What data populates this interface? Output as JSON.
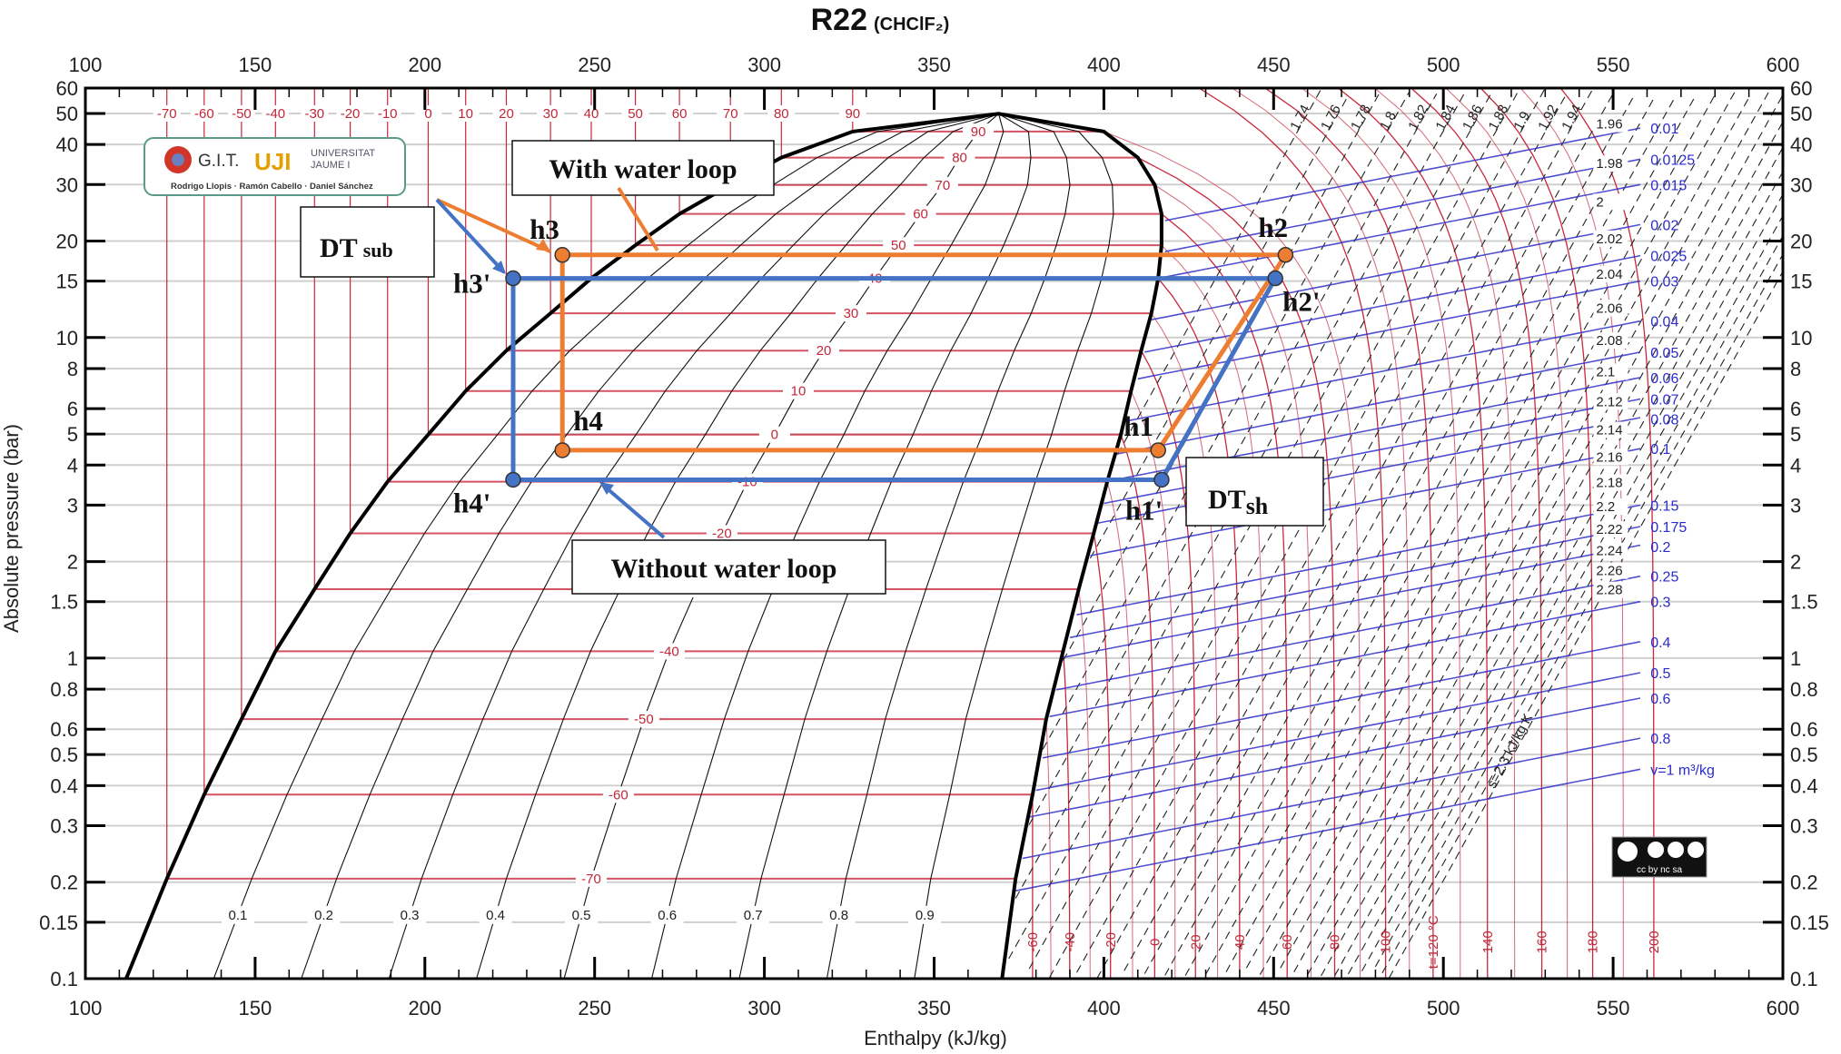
{
  "chart_data": {
    "type": "line",
    "title": "R22",
    "subtitle": "(CHClF₂)",
    "xlabel": "Enthalpy (kJ/kg)",
    "ylabel": "Absolute pressure (bar)",
    "xlim": [
      100,
      600
    ],
    "ylim": [
      0.1,
      60
    ],
    "yscale": "log",
    "grid": true,
    "xticks": [
      100,
      150,
      200,
      250,
      300,
      350,
      400,
      450,
      500,
      550,
      600
    ],
    "yticks": [
      0.1,
      0.15,
      0.2,
      0.3,
      0.4,
      0.5,
      0.6,
      0.8,
      1,
      1.5,
      2,
      3,
      4,
      5,
      6,
      8,
      10,
      15,
      20,
      30,
      40,
      50,
      60
    ],
    "ytick_labels": [
      "0.1",
      "0.15",
      "0.2",
      "0.3",
      "0.4",
      "0.5",
      "0.6",
      "0.8",
      "1",
      "1.5",
      "2",
      "3",
      "4",
      "5",
      "6",
      "8",
      "10",
      "15",
      "20",
      "30",
      "40",
      "50",
      "60"
    ],
    "saturation": {
      "low_end": {
        "p": 0.1,
        "h_liquid": 112,
        "h_vapor": 370
      },
      "critical": {
        "p": 49.9,
        "h": 369
      },
      "isotherms": [
        {
          "t": -70,
          "p": 0.205,
          "h_liquid": 124,
          "h_vapor": 374
        },
        {
          "t": -60,
          "p": 0.375,
          "h_liquid": 135,
          "h_vapor": 379
        },
        {
          "t": -50,
          "p": 0.645,
          "h_liquid": 146,
          "h_vapor": 383
        },
        {
          "t": -40,
          "p": 1.05,
          "h_liquid": 156,
          "h_vapor": 388
        },
        {
          "t": -30,
          "p": 1.64,
          "h_liquid": 167.5,
          "h_vapor": 392.6
        },
        {
          "t": -20,
          "p": 2.45,
          "h_liquid": 178,
          "h_vapor": 397
        },
        {
          "t": -10,
          "p": 3.55,
          "h_liquid": 189,
          "h_vapor": 401
        },
        {
          "t": 0,
          "p": 4.98,
          "h_liquid": 201,
          "h_vapor": 405
        },
        {
          "t": 10,
          "p": 6.81,
          "h_liquid": 212,
          "h_vapor": 408
        },
        {
          "t": 20,
          "p": 9.1,
          "h_liquid": 224,
          "h_vapor": 411
        },
        {
          "t": 30,
          "p": 11.9,
          "h_liquid": 237,
          "h_vapor": 414
        },
        {
          "t": 40,
          "p": 15.3,
          "h_liquid": 249,
          "h_vapor": 416
        },
        {
          "t": 50,
          "p": 19.4,
          "h_liquid": 262,
          "h_vapor": 417
        },
        {
          "t": 60,
          "p": 24.3,
          "h_liquid": 275,
          "h_vapor": 417
        },
        {
          "t": 70,
          "p": 29.9,
          "h_liquid": 290,
          "h_vapor": 415
        },
        {
          "t": 80,
          "p": 36.4,
          "h_liquid": 305,
          "h_vapor": 410
        },
        {
          "t": 90,
          "p": 43.9,
          "h_liquid": 326,
          "h_vapor": 400
        }
      ]
    },
    "superheated_isotherms": [
      {
        "t": -60,
        "label": "-60",
        "h_at_0_1_bar": 379
      },
      {
        "t": -40,
        "label": "-40",
        "h_at_0_1_bar": 390
      },
      {
        "t": -20,
        "label": "-20",
        "h_at_0_1_bar": 402
      },
      {
        "t": 0,
        "label": "0",
        "h_at_0_1_bar": 415
      },
      {
        "t": 20,
        "label": "20",
        "h_at_0_1_bar": 427
      },
      {
        "t": 40,
        "label": "40",
        "h_at_0_1_bar": 440
      },
      {
        "t": 60,
        "label": "60",
        "h_at_0_1_bar": 454
      },
      {
        "t": 80,
        "label": "80",
        "h_at_0_1_bar": 468
      },
      {
        "t": 100,
        "label": "100",
        "h_at_0_1_bar": 483
      },
      {
        "t": 120,
        "label": "t=120 °C",
        "h_at_0_1_bar": 497
      },
      {
        "t": 140,
        "label": "140",
        "h_at_0_1_bar": 513
      },
      {
        "t": 160,
        "label": "160",
        "h_at_0_1_bar": 529
      },
      {
        "t": 180,
        "label": "180",
        "h_at_0_1_bar": 544
      },
      {
        "t": 200,
        "label": "200",
        "h_at_0_1_bar": 562
      }
    ],
    "quality_lines": [
      0.1,
      0.2,
      0.3,
      0.4,
      0.5,
      0.6,
      0.7,
      0.8,
      0.9
    ],
    "entropy_lines": {
      "values": [
        1.74,
        1.76,
        1.78,
        1.8,
        1.82,
        1.84,
        1.86,
        1.88,
        1.9,
        1.92,
        1.94,
        1.96,
        1.98,
        2,
        2.02,
        2.04,
        2.06,
        2.08,
        2.1,
        2.12,
        2.14,
        2.16,
        2.18,
        2.2,
        2.22,
        2.24,
        2.26,
        2.28
      ],
      "labels": [
        "1.74",
        "1.76",
        "1.78",
        "1.8",
        "1.82",
        "1.84",
        "1.86",
        "1.88",
        "1.9",
        "1.92",
        "1.94",
        "1.96",
        "1.98",
        "2",
        "2.02",
        "2.04",
        "2.06",
        "2.08",
        "2.1",
        "2.12",
        "2.14",
        "2.16",
        "2.18",
        "2.2",
        "2.22",
        "2.24",
        "2.26",
        "2.28"
      ],
      "named_line": {
        "s": 2.3,
        "label": "s=2.3 kJ/kg K"
      }
    },
    "volume_lines": {
      "values": [
        0.01,
        0.0125,
        0.015,
        0.02,
        0.025,
        0.03,
        0.04,
        0.05,
        0.06,
        0.07,
        0.08,
        0.1,
        0.15,
        0.175,
        0.2,
        0.25,
        0.3,
        0.4,
        0.5,
        0.6,
        0.8,
        1
      ],
      "labels": [
        "0.01",
        "0.0125",
        "0.015",
        "0.02",
        "0.025",
        "0.03",
        "0.04",
        "0.05",
        "0.06",
        "0.07",
        "0.08",
        "0.1",
        "0.15",
        "0.175",
        "0.2",
        "0.25",
        "0.3",
        "0.4",
        "0.5",
        "0.6",
        "0.8",
        "v=1 m³/kg"
      ]
    },
    "cycles": [
      {
        "name": "With water loop",
        "color": "#ed7d31",
        "points": [
          {
            "label": "h1",
            "h": 416,
            "p": 4.45
          },
          {
            "label": "h2",
            "h": 453.5,
            "p": 18.1
          },
          {
            "label": "h3",
            "h": 240.5,
            "p": 18.1
          },
          {
            "label": "h4",
            "h": 240.5,
            "p": 4.45
          }
        ]
      },
      {
        "name": "Without water loop",
        "color": "#4472c4",
        "points": [
          {
            "label": "h1'",
            "h": 417,
            "p": 3.6
          },
          {
            "label": "h2'",
            "h": 450.5,
            "p": 15.3
          },
          {
            "label": "h3'",
            "h": 226,
            "p": 15.3
          },
          {
            "label": "h4'",
            "h": 226,
            "p": 3.6
          }
        ]
      }
    ],
    "annotations": {
      "with_water_loop": "With water loop",
      "without_water_loop": "Without water loop",
      "dt_sub_main": "DT",
      "dt_sub_sub": "sub",
      "dt_sh_main": "DT",
      "dt_sh_sub": "sh"
    },
    "colors": {
      "isotherm": "#c8283c",
      "volume": "#3030c8",
      "dome": "#000000",
      "grid": "#cfcfcf"
    }
  },
  "logo": {
    "git": "G.I.T.",
    "uji": "UJI",
    "university": "UNIVERSITAT",
    "university2": "JAUME I",
    "authors": "Rodrigo Llopis · Ramón Cabello · Daniel Sánchez"
  },
  "license_badge": "cc by nc sa"
}
